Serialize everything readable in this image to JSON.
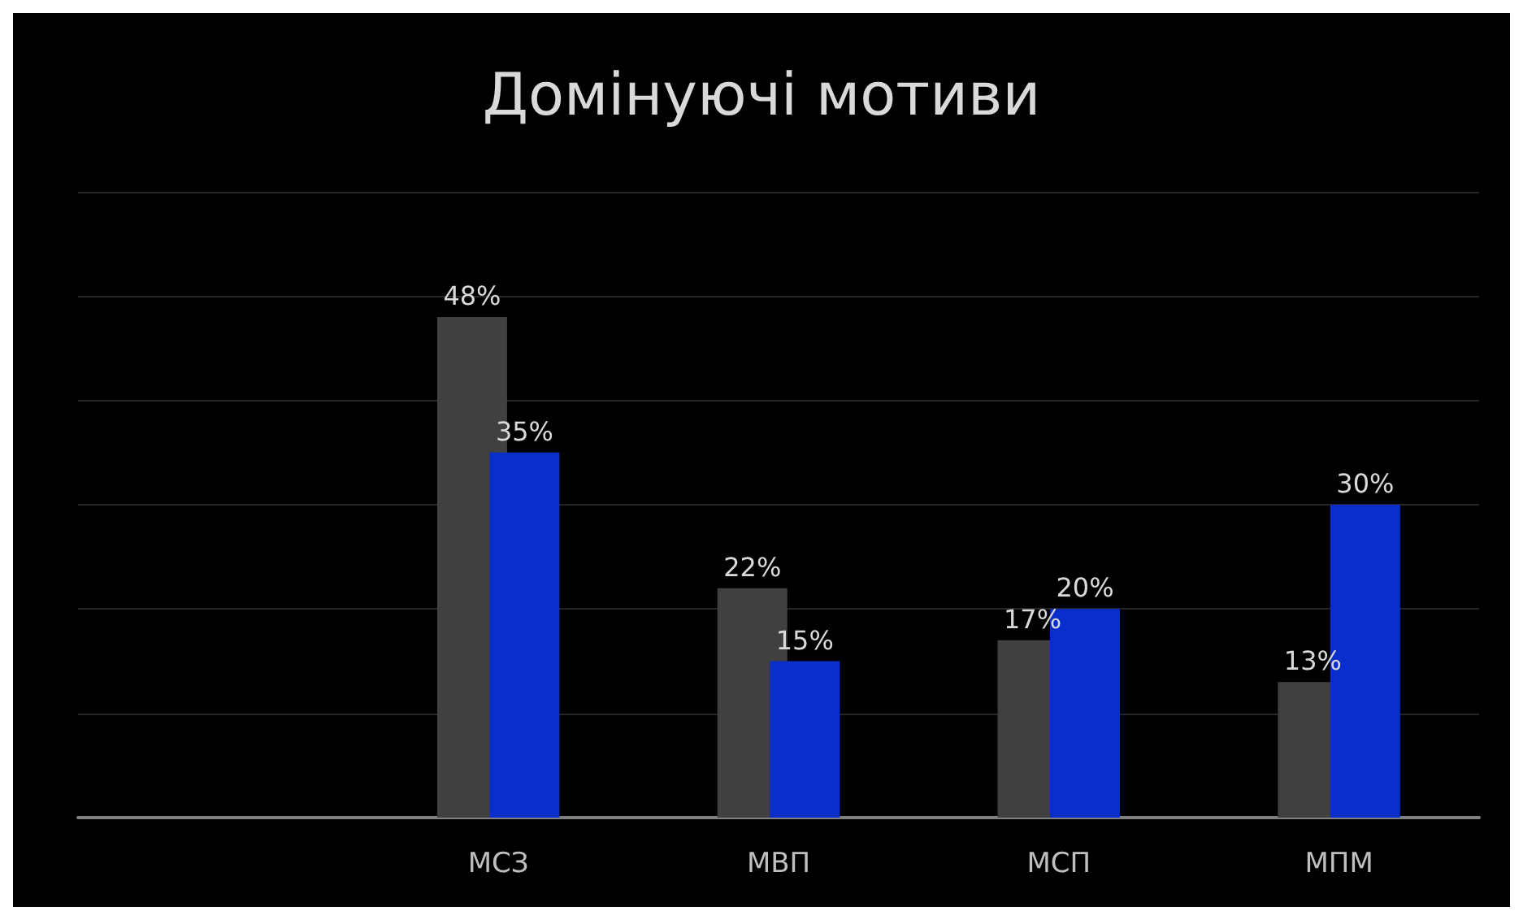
{
  "chart_data": {
    "type": "bar",
    "title": "Домінуючі мотиви",
    "categories": [
      null,
      "МСЗ",
      "МВП",
      "МСП",
      "МПМ"
    ],
    "series": [
      {
        "color": "#404040",
        "values": [
          null,
          48,
          22,
          17,
          13
        ],
        "value_labels": [
          null,
          "48%",
          "22%",
          "17%",
          "13%"
        ]
      },
      {
        "color": "#0a2ecc",
        "values": [
          null,
          35,
          15,
          20,
          30
        ],
        "value_labels": [
          null,
          "35%",
          "15%",
          "20%",
          "30%"
        ]
      }
    ],
    "ylim": [
      0,
      60
    ],
    "yticks": [
      {
        "value": 0,
        "label": null
      },
      {
        "value": 10,
        "label": null
      },
      {
        "value": 20,
        "label": null
      },
      {
        "value": 30,
        "label": null
      },
      {
        "value": 40,
        "label": null
      },
      {
        "value": 50,
        "label": null
      },
      {
        "value": 60,
        "label": null
      }
    ],
    "tick_labels": "x",
    "grid": "y"
  }
}
